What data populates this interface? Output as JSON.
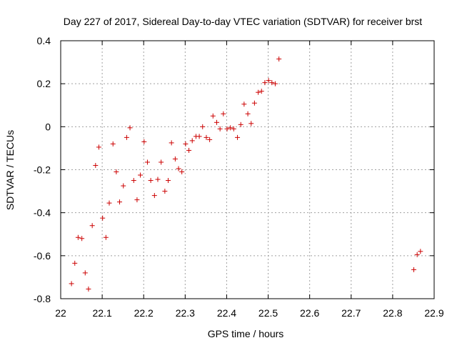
{
  "chart_data": {
    "type": "scatter",
    "title": "Day 227 of 2017, Sidereal Day-to-day VTEC variation (SDTVAR) for receiver brst",
    "xlabel": "GPS time / hours",
    "ylabel": "SDTVAR / TECUs",
    "xlim": [
      22,
      22.9
    ],
    "ylim": [
      -0.8,
      0.4
    ],
    "xticks": [
      22,
      22.1,
      22.2,
      22.3,
      22.4,
      22.5,
      22.6,
      22.7,
      22.8,
      22.9
    ],
    "xtick_labels": [
      "22",
      "22.1",
      "22.2",
      "22.3",
      "22.4",
      "22.5",
      "22.6",
      "22.7",
      "22.8",
      "22.9"
    ],
    "yticks": [
      -0.8,
      -0.6,
      -0.4,
      -0.2,
      0,
      0.2,
      0.4
    ],
    "ytick_labels": [
      "-0.8",
      "-0.6",
      "-0.4",
      "-0.2",
      "0",
      "0.2",
      "0.4"
    ],
    "grid": true,
    "marker": "+",
    "marker_color": "#cc0000",
    "series": [
      {
        "name": "SDTVAR",
        "x": [
          22.026,
          22.034,
          22.042,
          22.051,
          22.059,
          22.067,
          22.076,
          22.084,
          22.092,
          22.101,
          22.109,
          22.117,
          22.126,
          22.134,
          22.142,
          22.151,
          22.159,
          22.167,
          22.176,
          22.184,
          22.192,
          22.201,
          22.209,
          22.217,
          22.226,
          22.234,
          22.242,
          22.251,
          22.259,
          22.267,
          22.276,
          22.284,
          22.292,
          22.301,
          22.309,
          22.317,
          22.326,
          22.334,
          22.342,
          22.351,
          22.359,
          22.367,
          22.376,
          22.384,
          22.392,
          22.401,
          22.409,
          22.417,
          22.426,
          22.434,
          22.442,
          22.451,
          22.459,
          22.467,
          22.476,
          22.484,
          22.492,
          22.501,
          22.509,
          22.517,
          22.526,
          22.851,
          22.859,
          22.867
        ],
        "y": [
          -0.73,
          -0.635,
          -0.515,
          -0.52,
          -0.68,
          -0.755,
          -0.46,
          -0.18,
          -0.095,
          -0.425,
          -0.515,
          -0.355,
          -0.08,
          -0.21,
          -0.35,
          -0.275,
          -0.05,
          -0.005,
          -0.25,
          -0.34,
          -0.225,
          -0.07,
          -0.165,
          -0.25,
          -0.32,
          -0.245,
          -0.165,
          -0.3,
          -0.25,
          -0.075,
          -0.15,
          -0.195,
          -0.21,
          -0.08,
          -0.11,
          -0.065,
          -0.045,
          -0.045,
          0,
          -0.05,
          -0.06,
          0.05,
          0.02,
          -0.01,
          0.06,
          -0.01,
          -0.005,
          -0.01,
          -0.05,
          0.01,
          0.105,
          0.06,
          0.015,
          0.11,
          0.16,
          0.165,
          0.205,
          0.215,
          0.205,
          0.2,
          0.315,
          -0.665,
          -0.595,
          -0.58
        ]
      }
    ]
  }
}
